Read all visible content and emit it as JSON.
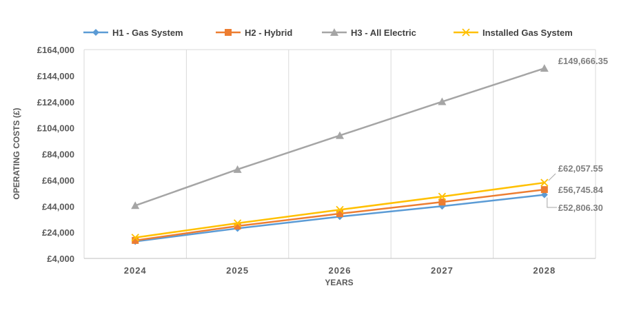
{
  "chart_data": {
    "type": "line",
    "title": "",
    "xlabel": "YEARS",
    "ylabel": "OPERATING COSTS (£)",
    "categories": [
      "2024",
      "2025",
      "2026",
      "2027",
      "2028"
    ],
    "ylim": [
      4000,
      164000
    ],
    "yticks": [
      4000,
      24000,
      44000,
      64000,
      84000,
      104000,
      124000,
      144000,
      164000
    ],
    "ytick_labels": [
      "£4,000",
      "£24,000",
      "£44,000",
      "£64,000",
      "£84,000",
      "£104,000",
      "£124,000",
      "£144,000",
      "£164,000"
    ],
    "grid": "vertical",
    "legend_position": "top",
    "series": [
      {
        "name": "H1 - Gas System",
        "color": "#5B9BD5",
        "marker": "diamond",
        "values": [
          17000,
          27000,
          36000,
          44000,
          52806.3
        ]
      },
      {
        "name": "H2 - Hybrid",
        "color": "#ED7D31",
        "marker": "square",
        "values": [
          17800,
          28800,
          38300,
          47200,
          56745.84
        ]
      },
      {
        "name": "H3 - All Electric",
        "color": "#A5A5A5",
        "marker": "triangle",
        "values": [
          44500,
          72200,
          98200,
          124100,
          149666.35
        ]
      },
      {
        "name": "Installed Gas System",
        "color": "#FFC000",
        "marker": "x",
        "values": [
          20000,
          31000,
          41300,
          51400,
          62057.55
        ]
      }
    ],
    "annotations": [
      {
        "series": 2,
        "text": "£149,666.35"
      },
      {
        "series": 3,
        "text": "£62,057.55"
      },
      {
        "series": 1,
        "text": "£56,745.84"
      },
      {
        "series": 0,
        "text": "£52,806.30"
      }
    ]
  }
}
